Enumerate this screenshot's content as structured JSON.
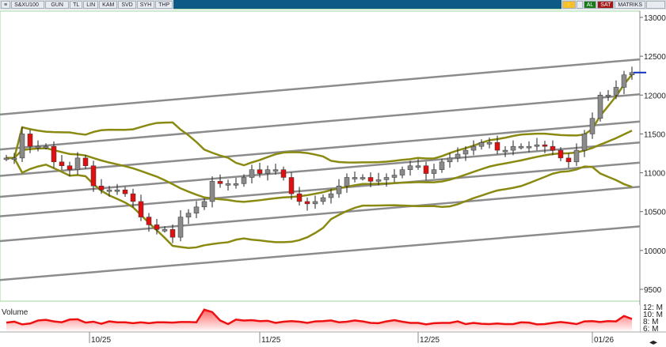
{
  "toolbar": {
    "symbol": "S&XU100",
    "buttons": [
      "GUN",
      "TL",
      "LIN",
      "KAM",
      "SVD",
      "SYH",
      "THP"
    ],
    "al": "AL",
    "sat": "SAT",
    "matriks": "MATRIKS"
  },
  "colors": {
    "up": "#8a8a8a",
    "down": "#e01010",
    "bands": "#8a8a12",
    "channel": "#8c8c8c",
    "volume": "#ee1111",
    "axis_marker": "#1030c0"
  },
  "chart_data": {
    "type": "candlestick",
    "y_ticks": [
      13000,
      12500,
      12000,
      11500,
      11000,
      10500,
      10000,
      9500
    ],
    "ylim": [
      9420,
      13080
    ],
    "x_labels": [
      {
        "label": "10/25",
        "index": 10.5
      },
      {
        "label": "11/25",
        "index": 32
      },
      {
        "label": "12/25",
        "index": 52
      },
      {
        "label": "01/26",
        "index": 74
      }
    ],
    "closes": [
      11190,
      11190,
      11500,
      11340,
      11340,
      11340,
      11140,
      11090,
      11040,
      11190,
      11090,
      10830,
      10780,
      10780,
      10780,
      10730,
      10630,
      10430,
      10330,
      10270,
      10270,
      10170,
      10430,
      10480,
      10560,
      10630,
      10890,
      10860,
      10860,
      10860,
      10940,
      11040,
      10990,
      11040,
      11040,
      10940,
      10730,
      10630,
      10600,
      10630,
      10680,
      10730,
      10830,
      10940,
      10940,
      10940,
      10890,
      10910,
      10940,
      10970,
      11040,
      11090,
      11090,
      10990,
      11040,
      11140,
      11190,
      11240,
      11290,
      11340,
      11390,
      11390,
      11290,
      11290,
      11340,
      11340,
      11340,
      11360,
      11340,
      11290,
      11190,
      11140,
      11290,
      11500,
      11700,
      12000,
      12000,
      12100,
      12260,
      12290
    ],
    "channel_lines": [
      [
        11750,
        12460
      ],
      [
        11300,
        12010
      ],
      [
        10960,
        11660
      ],
      [
        10690,
        11390
      ],
      [
        10440,
        11130
      ],
      [
        10120,
        10820
      ],
      [
        9620,
        10310
      ]
    ],
    "band_period": 20,
    "volume": {
      "label": "Volume",
      "ticks": [
        "12: M",
        "10: M",
        "8: M",
        "6: M"
      ],
      "values": [
        7.5,
        7.8,
        6.9,
        7.2,
        8.2,
        8.4,
        7.9,
        7.6,
        8.5,
        8.6,
        7.5,
        7.8,
        7.1,
        7.9,
        7.6,
        7.6,
        7.3,
        7.6,
        7.3,
        7.6,
        7.6,
        7.5,
        7.7,
        7.7,
        7.6,
        11.8,
        11,
        8.2,
        7,
        8.5,
        8.2,
        8.3,
        8,
        8.1,
        7.4,
        7.8,
        8,
        7.8,
        7.4,
        7.9,
        8,
        8.2,
        7.6,
        7.8,
        8.2,
        7.9,
        7.4,
        7.3,
        7.9,
        8.3,
        7.8,
        7.4,
        7.4,
        6.9,
        7.3,
        7.4,
        7.4,
        7.9,
        7,
        7.4,
        7.1,
        7,
        7.2,
        7,
        7,
        7.6,
        7.5,
        6.9,
        7,
        7.4,
        7.7,
        7.4,
        7,
        7.9,
        8,
        7.7,
        8,
        7.9,
        9.7,
        8.7
      ]
    }
  }
}
